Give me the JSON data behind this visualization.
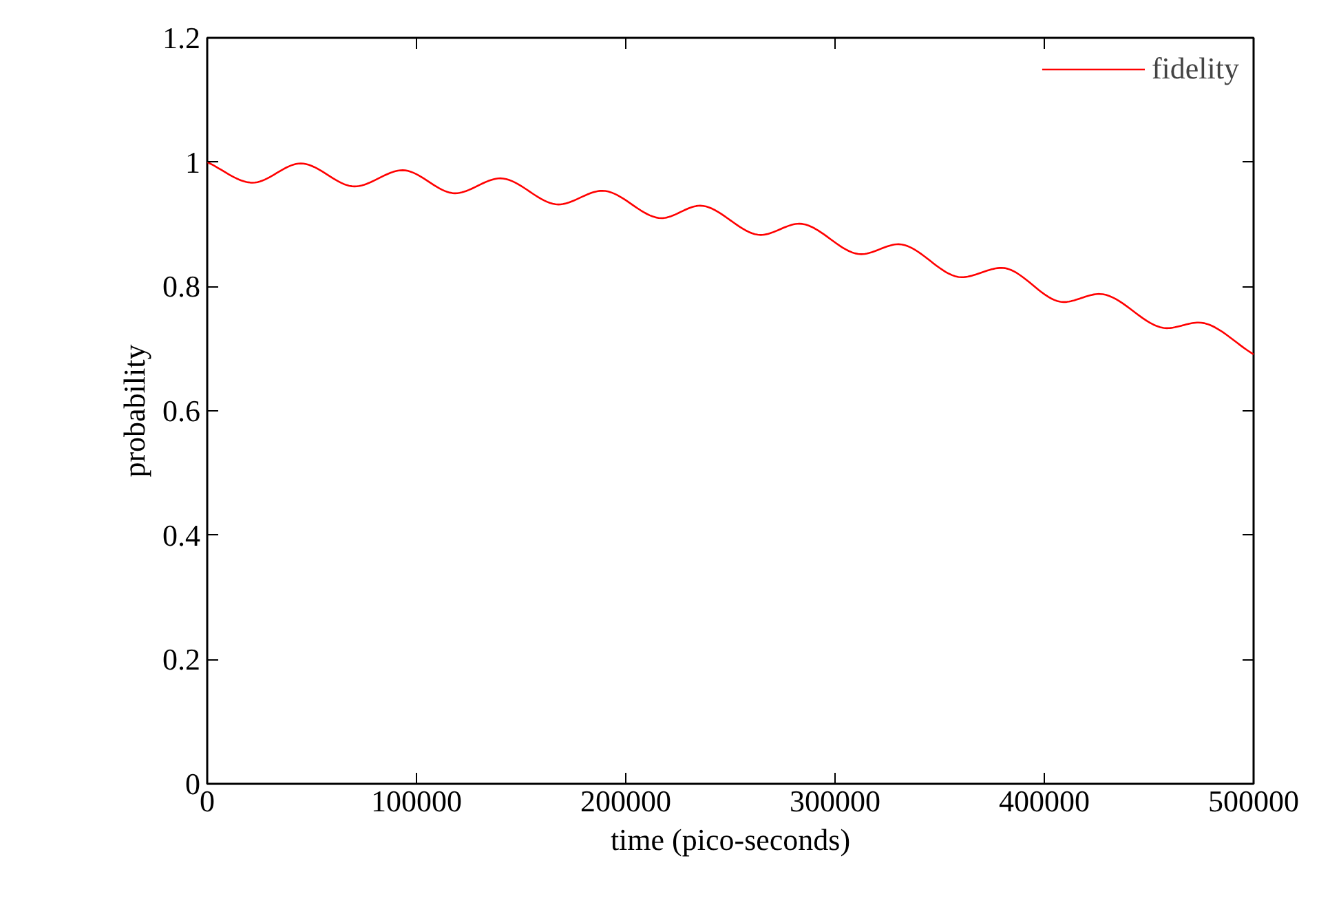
{
  "chart_data": {
    "type": "line",
    "xlabel": "time (pico-seconds)",
    "ylabel": "probability",
    "xlim": [
      0,
      500000
    ],
    "ylim": [
      0,
      1.2
    ],
    "xticks": [
      0,
      100000,
      200000,
      300000,
      400000,
      500000
    ],
    "yticks": [
      0,
      {
        "value": 0.2,
        "label": "0.2"
      },
      {
        "value": 0.4,
        "label": "0.4"
      },
      {
        "value": 0.6,
        "label": "0.6"
      },
      {
        "value": 0.8,
        "label": "0.8"
      },
      1,
      {
        "value": 1.2,
        "label": "1.2"
      }
    ],
    "grid": false,
    "legend": "top right",
    "marker": "none",
    "line_style": "solid",
    "series": [
      {
        "name": "fidelity",
        "color": "#ff0000",
        "x": [
          0,
          21700,
          44700,
          70400,
          93400,
          118400,
          140100,
          167800,
          188800,
          217100,
          235500,
          264500,
          282900,
          312500,
          330300,
          360500,
          379600,
          409200,
          426300,
          458600,
          473700,
          500000
        ],
        "values": [
          1.0,
          0.967,
          0.998,
          0.961,
          0.987,
          0.95,
          0.974,
          0.932,
          0.954,
          0.91,
          0.93,
          0.883,
          0.901,
          0.852,
          0.868,
          0.815,
          0.83,
          0.775,
          0.788,
          0.733,
          0.742,
          0.691
        ]
      }
    ]
  }
}
